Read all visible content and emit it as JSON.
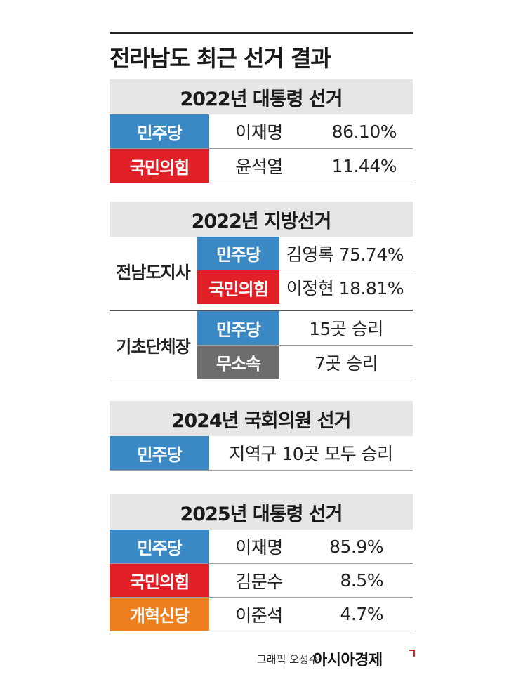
{
  "title": "전라남도 최근 선거 결과",
  "colors": {
    "minju": "#3a88c4",
    "ppp": "#e01f26",
    "independent": "#6d6d6d",
    "reform": "#ee7f1f",
    "header_bg": "#e6e6e6"
  },
  "chart_data": [
    {
      "type": "table",
      "title": "2022년 대통령 선거",
      "rows": [
        {
          "party": "민주당",
          "candidate": "이재명",
          "value": "86.10%",
          "color": "#3a88c4"
        },
        {
          "party": "국민의힘",
          "candidate": "윤석열",
          "value": "11.44%",
          "color": "#e01f26"
        }
      ]
    },
    {
      "type": "table",
      "title": "2022년 지방선거",
      "groups": [
        {
          "label": "전남도지사",
          "rows": [
            {
              "party": "민주당",
              "result": "김영록 75.74%",
              "color": "#3a88c4"
            },
            {
              "party": "국민의힘",
              "result": "이정현 18.81%",
              "color": "#e01f26"
            }
          ]
        },
        {
          "label": "기초단체장",
          "rows": [
            {
              "party": "민주당",
              "result": "15곳 승리",
              "color": "#3a88c4"
            },
            {
              "party": "무소속",
              "result": "7곳 승리",
              "color": "#6d6d6d"
            }
          ]
        }
      ]
    },
    {
      "type": "table",
      "title": "2024년 국회의원 선거",
      "rows": [
        {
          "party": "민주당",
          "result": "지역구 10곳 모두 승리",
          "color": "#3a88c4"
        }
      ]
    },
    {
      "type": "table",
      "title": "2025년 대통령 선거",
      "rows": [
        {
          "party": "민주당",
          "candidate": "이재명",
          "value": "85.9%",
          "color": "#3a88c4"
        },
        {
          "party": "국민의힘",
          "candidate": "김문수",
          "value": "8.5%",
          "color": "#e01f26"
        },
        {
          "party": "개혁신당",
          "candidate": "이준석",
          "value": "4.7%",
          "color": "#ee7f1f"
        }
      ]
    }
  ],
  "footer": {
    "credit": "그래픽 오성수",
    "brand": "아시아경제"
  }
}
